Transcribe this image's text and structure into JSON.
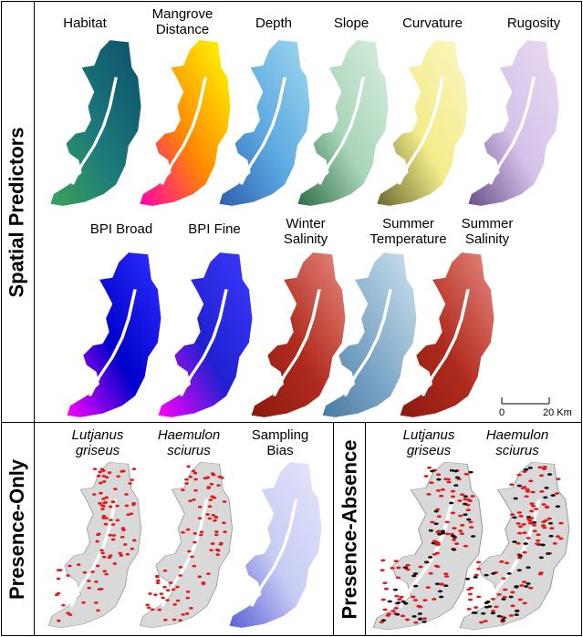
{
  "sections": {
    "spatial": "Spatial Predictors",
    "presence_only": "Presence-Only",
    "presence_absence": "Presence-Absence"
  },
  "spatial_row1": [
    {
      "label": "Habitat",
      "theme": "habitat"
    },
    {
      "label": "Mangrove\nDistance",
      "theme": "mangrove"
    },
    {
      "label": "Depth",
      "theme": "depth"
    },
    {
      "label": "Slope",
      "theme": "slope"
    },
    {
      "label": "Curvature",
      "theme": "curvature"
    },
    {
      "label": "Rugosity",
      "theme": "rugosity"
    }
  ],
  "spatial_row2": [
    {
      "label": "BPI Broad",
      "theme": "bpibroad"
    },
    {
      "label": "BPI Fine",
      "theme": "bpifine"
    },
    {
      "label": "Winter\nSalinity",
      "theme": "salinity"
    },
    {
      "label": "Summer\nTemperature",
      "theme": "temperature"
    },
    {
      "label": "Summer\nSalinity",
      "theme": "salinity"
    }
  ],
  "presence_only_maps": [
    {
      "label": "Lutjanus\ngriseus",
      "italic": true,
      "theme": "po"
    },
    {
      "label": "Haemulon\nsciurus",
      "italic": true,
      "theme": "po"
    },
    {
      "label": "Sampling\nBias",
      "italic": false,
      "theme": "bias"
    }
  ],
  "presence_absence_maps": [
    {
      "label": "Lutjanus\ngriseus",
      "italic": true,
      "theme": "pa"
    },
    {
      "label": "Haemulon\nsciurus",
      "italic": true,
      "theme": "pa"
    }
  ],
  "scale": {
    "min": "0",
    "max": "20 Km"
  },
  "colors": {
    "presence": "#e31a1c",
    "absence": "#111111",
    "land": "#d9d9d9"
  }
}
